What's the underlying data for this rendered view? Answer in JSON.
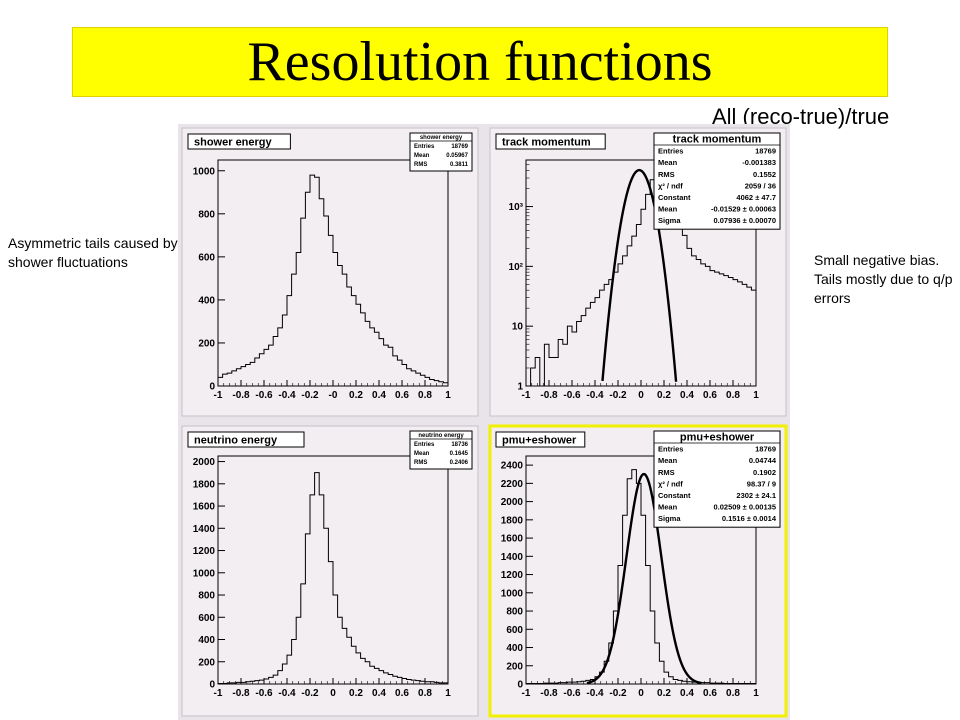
{
  "slide": {
    "title": "Resolution functions",
    "subtitle": "All (reco-true)/true",
    "note_left": "Asymmetric tails caused by shower fluctuations",
    "note_right": "Small negative bias. Tails mostly due to q/p errors",
    "colors": {
      "title_bg": "#ffff00",
      "panel_bg": "#e9e4ea",
      "plot_bg": "#f2eef2",
      "highlight_border": "#f0f000"
    }
  },
  "chart_data": [
    {
      "type": "bar",
      "title": "shower energy",
      "log_y": false,
      "xlim": [
        -1,
        1
      ],
      "ylim": [
        0,
        1050
      ],
      "x_ticks": [
        -1,
        -0.8,
        -0.6,
        -0.4,
        -0.2,
        0,
        0.2,
        0.4,
        0.6,
        0.8,
        1
      ],
      "x_tick_labels": [
        "-1",
        "-0.8",
        "-0.6",
        "-0.4",
        "-0.2",
        "-0",
        "0.2",
        "0.4",
        "0.6",
        "0.8",
        "1"
      ],
      "y_ticks": [
        0,
        200,
        400,
        600,
        800,
        1000
      ],
      "y_tick_labels": [
        "0",
        "200",
        "400",
        "600",
        "800",
        "1000"
      ],
      "bin_edges": [
        -1,
        0.04
      ],
      "values": [
        40,
        55,
        60,
        70,
        80,
        90,
        100,
        110,
        130,
        150,
        170,
        190,
        230,
        270,
        330,
        420,
        520,
        620,
        780,
        900,
        980,
        970,
        870,
        790,
        700,
        620,
        560,
        520,
        460,
        420,
        380,
        340,
        300,
        270,
        250,
        220,
        190,
        180,
        140,
        120,
        100,
        80,
        70,
        60,
        50,
        40,
        30,
        25,
        20,
        15
      ],
      "stats": {
        "title": "shower energy",
        "rows": [
          [
            "Entries",
            "18769"
          ],
          [
            "Mean",
            "0.05967"
          ],
          [
            "RMS",
            "0.3811"
          ]
        ]
      },
      "highlight": false
    },
    {
      "type": "bar",
      "title": "track momentum",
      "log_y": true,
      "xlim": [
        -1,
        1
      ],
      "ylim": [
        1,
        6000
      ],
      "x_ticks": [
        -1,
        -0.8,
        -0.6,
        -0.4,
        -0.2,
        0,
        0.2,
        0.4,
        0.6,
        0.8,
        1
      ],
      "x_tick_labels": [
        "-1",
        "-0.8",
        "-0.6",
        "-0.4",
        "-0.2",
        "0",
        "0.2",
        "0.4",
        "0.6",
        "0.8",
        "1"
      ],
      "y_ticks": [
        1,
        10,
        100,
        1000
      ],
      "y_tick_labels": [
        "1",
        "10",
        "10²",
        "10³"
      ],
      "bin_edges": [
        -1,
        0.04
      ],
      "values": [
        1,
        2,
        3,
        1,
        5,
        3,
        3,
        6,
        5,
        10,
        8,
        12,
        15,
        20,
        25,
        30,
        40,
        50,
        60,
        80,
        110,
        150,
        220,
        320,
        500,
        900,
        1600,
        2800,
        3800,
        4000,
        3600,
        2500,
        1400,
        700,
        330,
        200,
        150,
        130,
        110,
        100,
        85,
        80,
        75,
        70,
        65,
        60,
        55,
        50,
        45,
        40
      ],
      "fit": {
        "type": "gaussian",
        "constant": 4062,
        "mean": -0.01529,
        "sigma": 0.07936
      },
      "stats": {
        "title": "track momentum",
        "rows": [
          [
            "Entries",
            "18769"
          ],
          [
            "Mean",
            "-0.001383"
          ],
          [
            "RMS",
            "0.1552"
          ],
          [
            "χ² / ndf",
            "2059 / 36"
          ],
          [
            "Constant",
            "4062 ± 47.7"
          ],
          [
            "Mean",
            "-0.01529 ± 0.00063"
          ],
          [
            "Sigma",
            "0.07936 ± 0.00070"
          ]
        ]
      },
      "highlight": false
    },
    {
      "type": "bar",
      "title": "neutrino energy",
      "log_y": false,
      "xlim": [
        -1,
        1
      ],
      "ylim": [
        0,
        2050
      ],
      "x_ticks": [
        -1,
        -0.8,
        -0.6,
        -0.4,
        -0.2,
        0,
        0.2,
        0.4,
        0.6,
        0.8,
        1
      ],
      "x_tick_labels": [
        "-1",
        "-0.8",
        "-0.6",
        "-0.4",
        "-0.2",
        "0",
        "0.2",
        "0.4",
        "0.6",
        "0.8",
        "1"
      ],
      "y_ticks": [
        0,
        200,
        400,
        600,
        800,
        1000,
        1200,
        1400,
        1600,
        1800,
        2000
      ],
      "y_tick_labels": [
        "0",
        "200",
        "400",
        "600",
        "800",
        "1000",
        "1200",
        "1400",
        "1600",
        "1800",
        "2000"
      ],
      "bin_edges": [
        -1,
        0.04
      ],
      "values": [
        5,
        5,
        10,
        10,
        15,
        15,
        20,
        25,
        30,
        35,
        45,
        60,
        80,
        120,
        180,
        260,
        400,
        600,
        900,
        1350,
        1700,
        1900,
        1700,
        1400,
        1100,
        800,
        600,
        500,
        420,
        340,
        280,
        230,
        200,
        160,
        140,
        120,
        100,
        85,
        70,
        60,
        50,
        40,
        35,
        30,
        25,
        20,
        20,
        15,
        10,
        10
      ],
      "stats": {
        "title": "neutrino energy",
        "rows": [
          [
            "Entries",
            "18736"
          ],
          [
            "Mean",
            "0.1645"
          ],
          [
            "RMS",
            "0.2406"
          ]
        ]
      },
      "highlight": false
    },
    {
      "type": "bar",
      "title": "pmu+eshower",
      "log_y": false,
      "xlim": [
        -1,
        1
      ],
      "ylim": [
        0,
        2500
      ],
      "x_ticks": [
        -1,
        -0.8,
        -0.6,
        -0.4,
        -0.2,
        0,
        0.2,
        0.4,
        0.6,
        0.8,
        1
      ],
      "x_tick_labels": [
        "-1",
        "-0.8",
        "-0.6",
        "-0.4",
        "-0.2",
        "0",
        "0.2",
        "0.4",
        "0.6",
        "0.8",
        "1"
      ],
      "y_ticks": [
        0,
        200,
        400,
        600,
        800,
        1000,
        1200,
        1400,
        1600,
        1800,
        2000,
        2200,
        2400
      ],
      "y_tick_labels": [
        "0",
        "200",
        "400",
        "600",
        "800",
        "1000",
        "1200",
        "1400",
        "1600",
        "1800",
        "2000",
        "2200",
        "2400"
      ],
      "bin_edges": [
        -1,
        0.04
      ],
      "values": [
        5,
        5,
        5,
        5,
        10,
        10,
        10,
        15,
        15,
        20,
        20,
        25,
        30,
        40,
        50,
        80,
        130,
        250,
        450,
        800,
        1300,
        1850,
        2250,
        2350,
        2200,
        1850,
        1300,
        800,
        450,
        250,
        130,
        80,
        50,
        40,
        30,
        25,
        20,
        20,
        15,
        15,
        10,
        10,
        10,
        5,
        5,
        5,
        5,
        5,
        5,
        5
      ],
      "fit": {
        "type": "gaussian",
        "constant": 2302,
        "mean": 0.02509,
        "sigma": 0.1516
      },
      "stats": {
        "title": "pmu+eshower",
        "rows": [
          [
            "Entries",
            "18769"
          ],
          [
            "Mean",
            "0.04744"
          ],
          [
            "RMS",
            "0.1902"
          ],
          [
            "χ² / ndf",
            "98.37 / 9"
          ],
          [
            "Constant",
            "2302 ± 24.1"
          ],
          [
            "Mean",
            "0.02509 ± 0.00135"
          ],
          [
            "Sigma",
            "0.1516 ± 0.0014"
          ]
        ]
      },
      "highlight": true
    }
  ]
}
